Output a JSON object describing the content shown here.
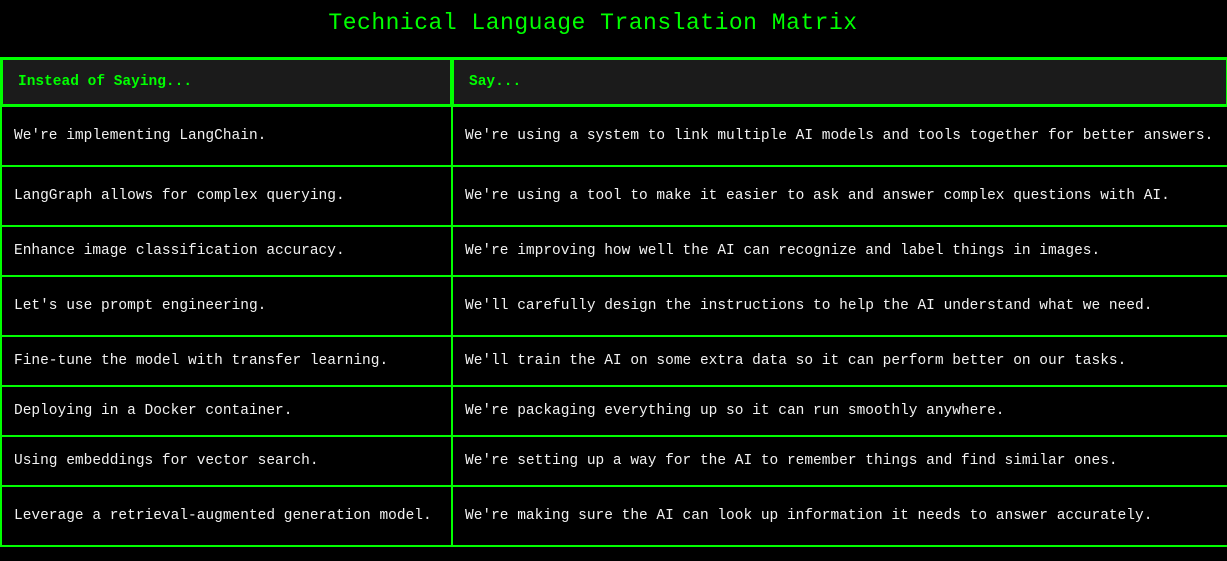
{
  "title": "Technical Language Translation Matrix",
  "headers": {
    "instead": "Instead of Saying...",
    "say": "Say..."
  },
  "rows": [
    {
      "instead": "We're implementing LangChain.",
      "say": "We're using a system to link multiple AI models and tools together for better answers."
    },
    {
      "instead": "LangGraph allows for complex querying.",
      "say": "We're using a tool to make it easier to ask and answer complex questions with AI."
    },
    {
      "instead": "Enhance image classification accuracy.",
      "say": "We're improving how well the AI can recognize and label things in images."
    },
    {
      "instead": "Let's use prompt engineering.",
      "say": "We'll carefully design the instructions to help the AI understand what we need."
    },
    {
      "instead": "Fine-tune the model with transfer learning.",
      "say": "We'll train the AI on some extra data so it can perform better on our tasks."
    },
    {
      "instead": "Deploying in a Docker container.",
      "say": "We're packaging everything up so it can run smoothly anywhere."
    },
    {
      "instead": "Using embeddings for vector search.",
      "say": "We're setting up a way for the AI to remember things and find similar ones."
    },
    {
      "instead": "Leverage a retrieval-augmented generation model.",
      "say": "We're making sure the AI can look up information it needs to answer accurately."
    }
  ],
  "colors": {
    "accent": "#00ff00",
    "background": "#000000",
    "header_background": "#1b1b1b",
    "text": "#f2f2f2"
  }
}
